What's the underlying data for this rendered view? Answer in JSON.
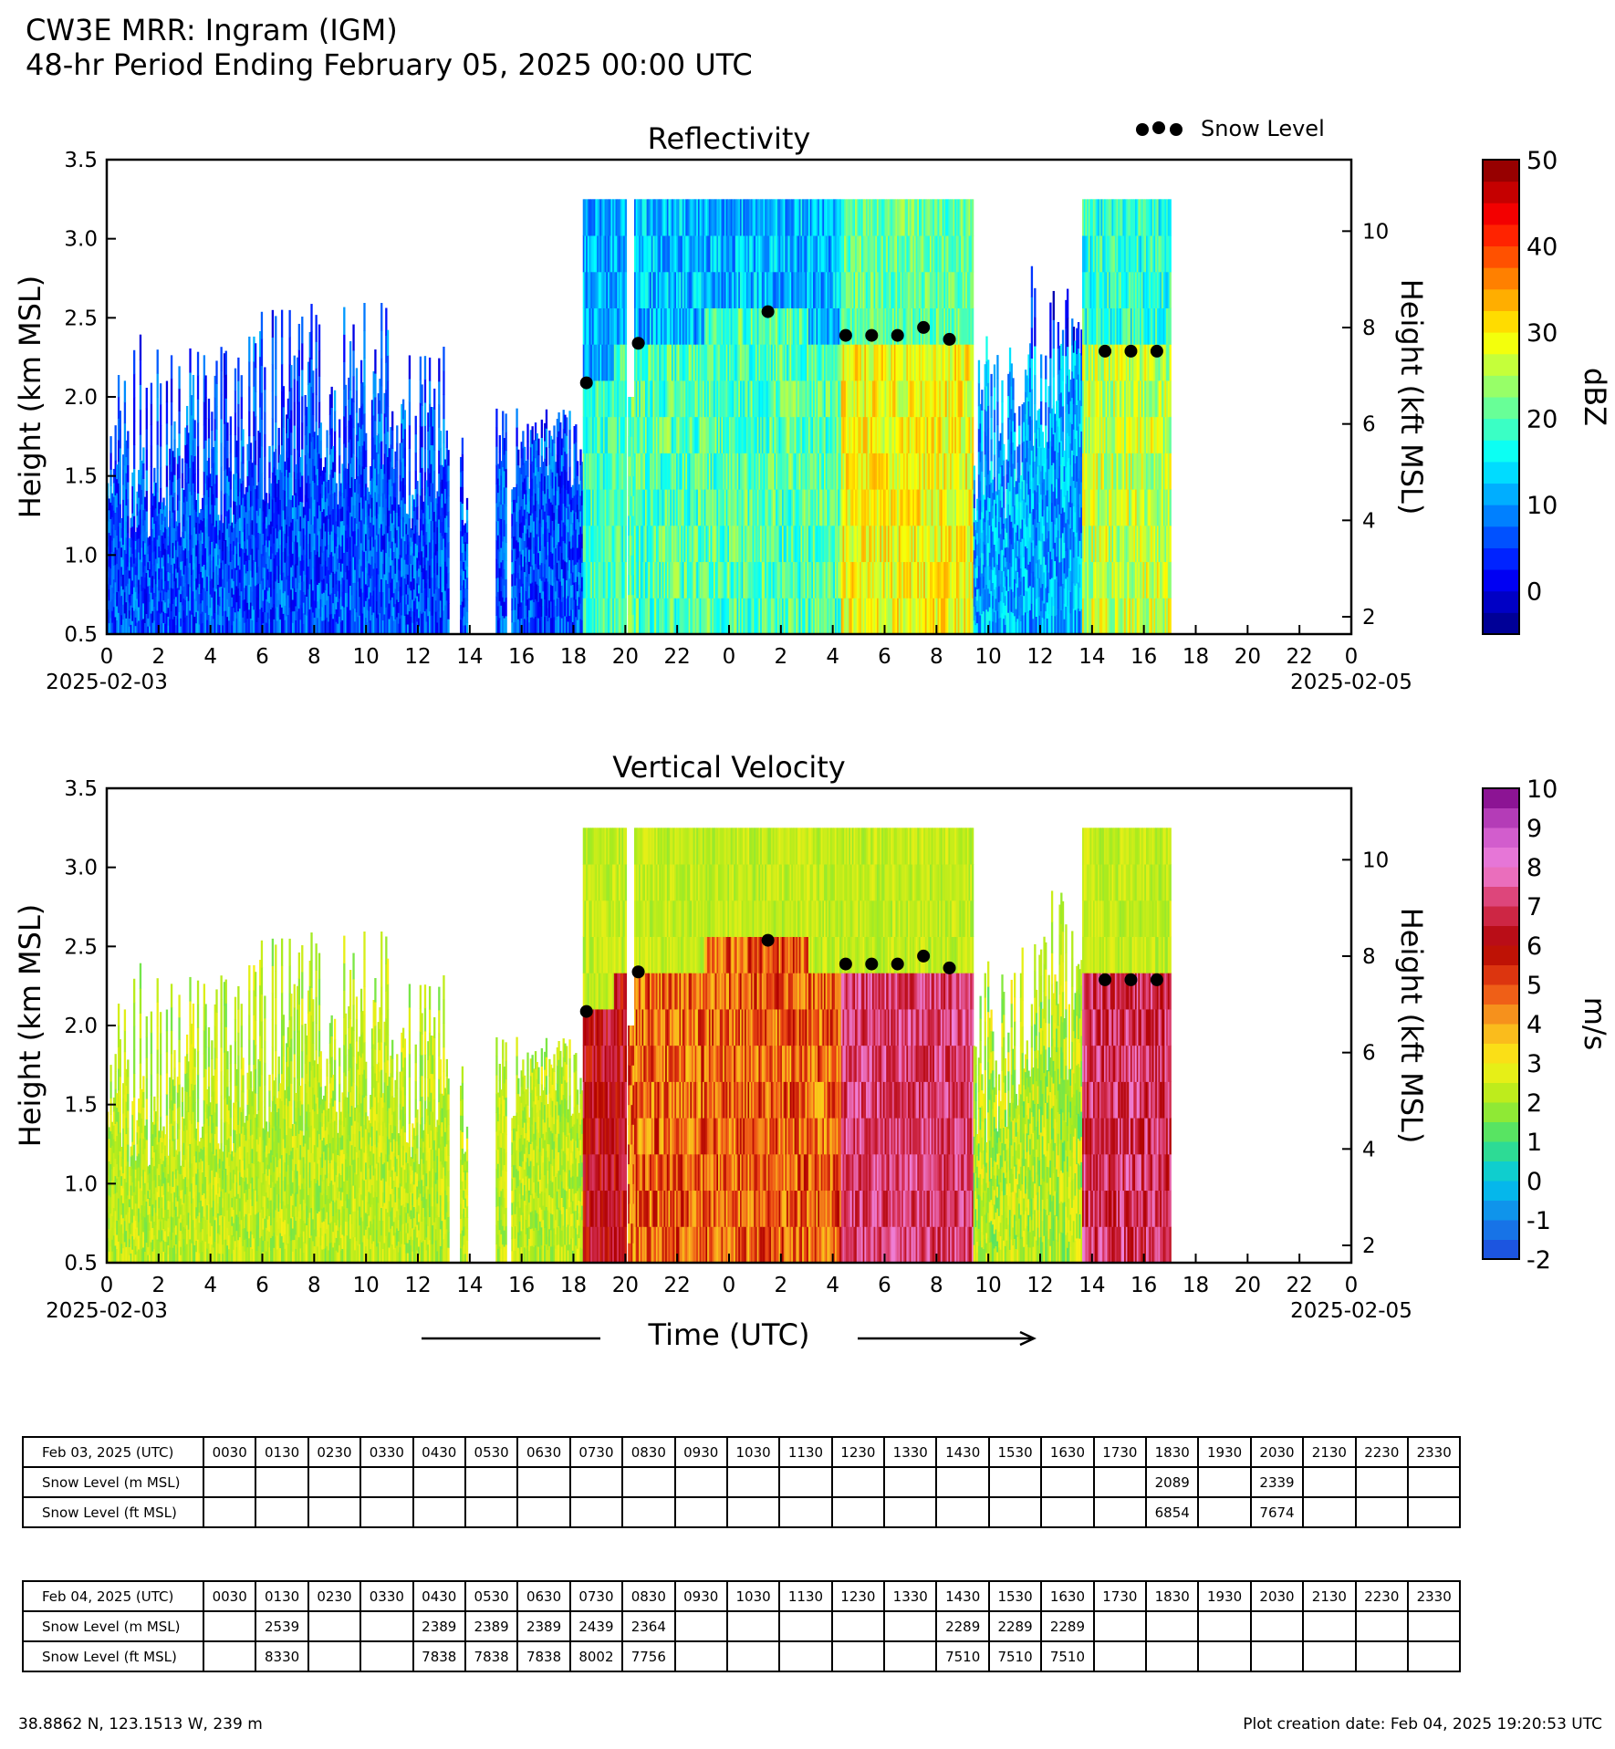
{
  "header": {
    "title": "CW3E MRR: Ingram (IGM)",
    "subtitle": "48-hr Period Ending February 05, 2025 00:00 UTC"
  },
  "legend": {
    "label": "Snow Level"
  },
  "x_axis": {
    "ticks": [
      "0",
      "2",
      "4",
      "6",
      "8",
      "10",
      "12",
      "14",
      "16",
      "18",
      "20",
      "22",
      "0",
      "2",
      "4",
      "6",
      "8",
      "10",
      "12",
      "14",
      "16",
      "18",
      "20",
      "22",
      "0"
    ],
    "date_start": "2025-02-03",
    "date_end": "2025-02-05",
    "label": "Time (UTC)"
  },
  "y_axis": {
    "left_label": "Height (km MSL)",
    "left_ticks": [
      "0.5",
      "1.0",
      "1.5",
      "2.0",
      "2.5",
      "3.0",
      "3.5"
    ],
    "right_label": "Height (kft MSL)",
    "right_ticks": [
      "2",
      "4",
      "6",
      "8",
      "10"
    ]
  },
  "chart_data": [
    {
      "type": "heatmap",
      "title": "Reflectivity",
      "xlabel": "Time (UTC)",
      "ylabel": "Height (km MSL)",
      "ylabel_right": "Height (kft MSL)",
      "xlim_hours": [
        0,
        48
      ],
      "ylim": [
        0.5,
        3.5
      ],
      "colorbar": {
        "label": "dBZ",
        "range": [
          -5,
          50
        ],
        "ticks": [
          "0",
          "10",
          "20",
          "30",
          "40",
          "50"
        ],
        "colormap": "jet"
      },
      "snow_level_series": {
        "name": "Snow Level",
        "hours": [
          18.5,
          20.5,
          25.5,
          28.5,
          29.5,
          30.5,
          31.5,
          32.5,
          38.5,
          39.5,
          40.5
        ],
        "km": [
          2.089,
          2.339,
          2.539,
          2.389,
          2.389,
          2.389,
          2.439,
          2.364,
          2.289,
          2.289,
          2.289
        ]
      }
    },
    {
      "type": "heatmap",
      "title": "Vertical Velocity",
      "xlabel": "Time (UTC)",
      "ylabel": "Height (km MSL)",
      "ylabel_right": "Height (kft MSL)",
      "xlim_hours": [
        0,
        48
      ],
      "ylim": [
        0.5,
        3.5
      ],
      "colorbar": {
        "label": "m/s",
        "range": [
          -2,
          10
        ],
        "ticks": [
          "-2",
          "-1",
          "0",
          "1",
          "2",
          "3",
          "4",
          "5",
          "6",
          "7",
          "8",
          "9",
          "10"
        ],
        "colormap": "velocity"
      },
      "snow_level_series": {
        "name": "Snow Level",
        "hours": [
          18.5,
          20.5,
          25.5,
          28.5,
          29.5,
          30.5,
          31.5,
          32.5,
          38.5,
          39.5,
          40.5
        ],
        "km": [
          2.089,
          2.339,
          2.539,
          2.389,
          2.389,
          2.389,
          2.439,
          2.364,
          2.289,
          2.289,
          2.289
        ]
      }
    }
  ],
  "tables": [
    {
      "date_label": "Feb 03, 2025 (UTC)",
      "times": [
        "0030",
        "0130",
        "0230",
        "0330",
        "0430",
        "0530",
        "0630",
        "0730",
        "0830",
        "0930",
        "1030",
        "1130",
        "1230",
        "1330",
        "1430",
        "1530",
        "1630",
        "1730",
        "1830",
        "1930",
        "2030",
        "2130",
        "2230",
        "2330"
      ],
      "m_label": "Snow Level (m MSL)",
      "m_values": [
        "",
        "",
        "",
        "",
        "",
        "",
        "",
        "",
        "",
        "",
        "",
        "",
        "",
        "",
        "",
        "",
        "",
        "",
        "2089",
        "",
        "2339",
        "",
        "",
        ""
      ],
      "ft_label": "Snow Level (ft MSL)",
      "ft_values": [
        "",
        "",
        "",
        "",
        "",
        "",
        "",
        "",
        "",
        "",
        "",
        "",
        "",
        "",
        "",
        "",
        "",
        "",
        "6854",
        "",
        "7674",
        "",
        "",
        ""
      ]
    },
    {
      "date_label": "Feb 04, 2025 (UTC)",
      "times": [
        "0030",
        "0130",
        "0230",
        "0330",
        "0430",
        "0530",
        "0630",
        "0730",
        "0830",
        "0930",
        "1030",
        "1130",
        "1230",
        "1330",
        "1430",
        "1530",
        "1630",
        "1730",
        "1830",
        "1930",
        "2030",
        "2130",
        "2230",
        "2330"
      ],
      "m_label": "Snow Level (m MSL)",
      "m_values": [
        "",
        "2539",
        "",
        "",
        "2389",
        "2389",
        "2389",
        "2439",
        "2364",
        "",
        "",
        "",
        "",
        "",
        "2289",
        "2289",
        "2289",
        "",
        "",
        "",
        "",
        "",
        "",
        ""
      ],
      "ft_label": "Snow Level (ft MSL)",
      "ft_values": [
        "",
        "8330",
        "",
        "",
        "7838",
        "7838",
        "7838",
        "8002",
        "7756",
        "",
        "",
        "",
        "",
        "",
        "7510",
        "7510",
        "7510",
        "",
        "",
        "",
        "",
        "",
        "",
        ""
      ]
    }
  ],
  "footer": {
    "location": "38.8862 N, 123.1513 W, 239 m",
    "creation": "Plot creation date: Feb 04, 2025 19:20:53 UTC"
  }
}
